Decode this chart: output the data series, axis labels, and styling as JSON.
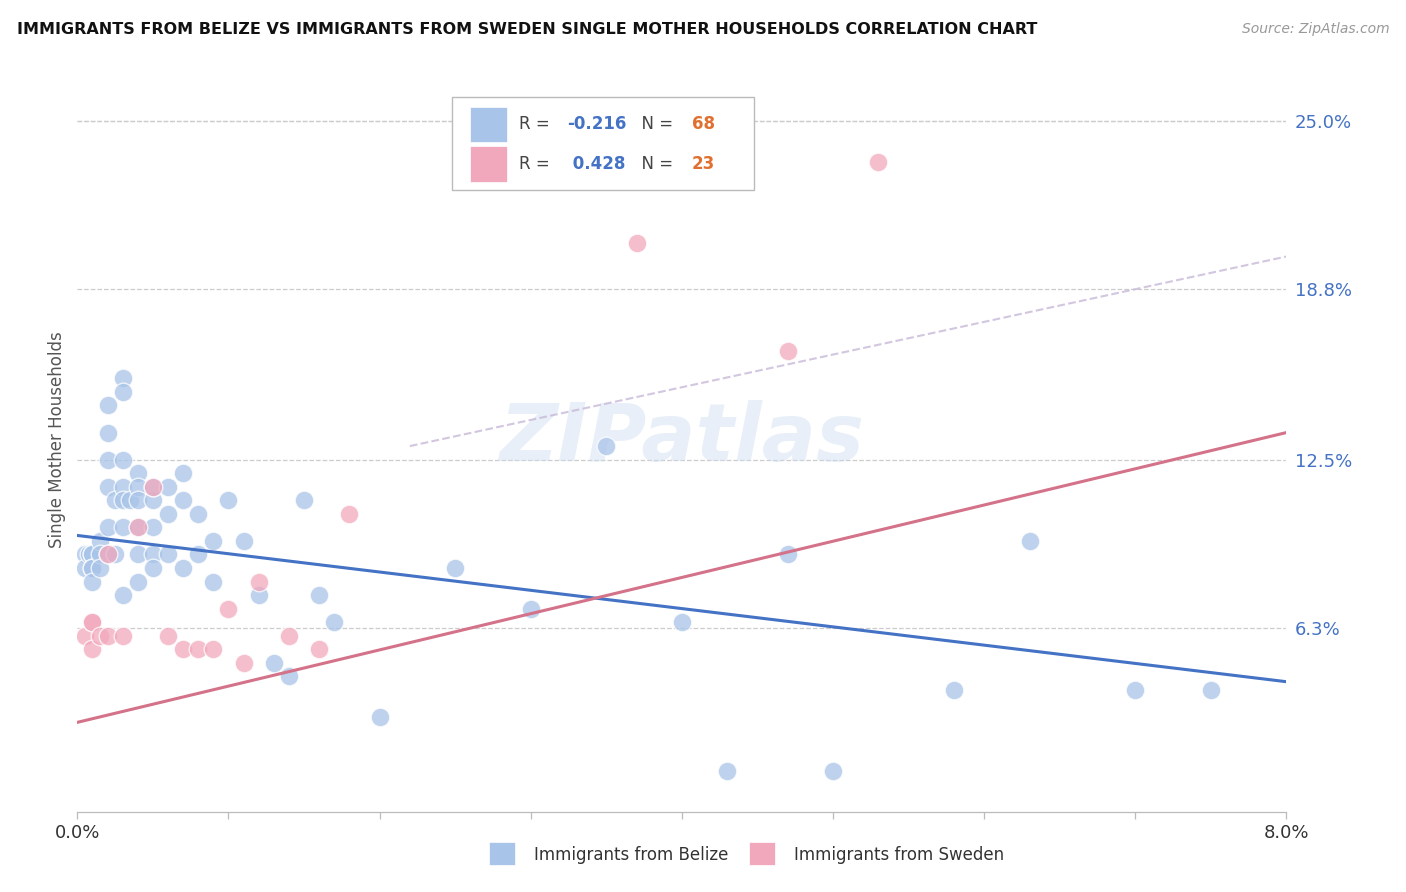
{
  "title": "IMMIGRANTS FROM BELIZE VS IMMIGRANTS FROM SWEDEN SINGLE MOTHER HOUSEHOLDS CORRELATION CHART",
  "source": "Source: ZipAtlas.com",
  "ylabel": "Single Mother Households",
  "right_yticks": [
    "25.0%",
    "18.8%",
    "12.5%",
    "6.3%"
  ],
  "right_ytick_vals": [
    0.25,
    0.188,
    0.125,
    0.063
  ],
  "belize_R": "-0.216",
  "belize_N": "68",
  "sweden_R": "0.428",
  "sweden_N": "23",
  "belize_color": "#a8c4e8",
  "sweden_color": "#f2a8bc",
  "belize_line_color": "#4472c4",
  "sweden_line_color": "#d4728a",
  "dashed_line_color": "#c8b8d8",
  "label_color": "#4472c4",
  "N_color": "#e07030",
  "watermark": "ZIPatlas",
  "xlim": [
    0.0,
    0.08
  ],
  "ylim": [
    -0.005,
    0.27
  ],
  "x_tick_positions": [
    0.0,
    0.01,
    0.02,
    0.03,
    0.04,
    0.05,
    0.06,
    0.07,
    0.08
  ],
  "x_tick_labels": [
    "0.0%",
    "",
    "",
    "",
    "",
    "",
    "",
    "",
    "8.0%"
  ],
  "belize_x": [
    0.0005,
    0.0005,
    0.0008,
    0.001,
    0.001,
    0.001,
    0.001,
    0.001,
    0.0015,
    0.0015,
    0.0015,
    0.002,
    0.002,
    0.002,
    0.002,
    0.002,
    0.002,
    0.0025,
    0.0025,
    0.003,
    0.003,
    0.003,
    0.003,
    0.003,
    0.003,
    0.003,
    0.0035,
    0.004,
    0.004,
    0.004,
    0.004,
    0.004,
    0.004,
    0.005,
    0.005,
    0.005,
    0.005,
    0.005,
    0.006,
    0.006,
    0.006,
    0.007,
    0.007,
    0.007,
    0.008,
    0.008,
    0.009,
    0.009,
    0.01,
    0.011,
    0.012,
    0.013,
    0.014,
    0.015,
    0.016,
    0.017,
    0.02,
    0.025,
    0.03,
    0.035,
    0.04,
    0.043,
    0.047,
    0.05,
    0.058,
    0.063,
    0.07,
    0.075
  ],
  "belize_y": [
    0.09,
    0.085,
    0.09,
    0.09,
    0.09,
    0.085,
    0.085,
    0.08,
    0.095,
    0.09,
    0.085,
    0.145,
    0.135,
    0.125,
    0.115,
    0.1,
    0.09,
    0.11,
    0.09,
    0.155,
    0.15,
    0.125,
    0.115,
    0.11,
    0.1,
    0.075,
    0.11,
    0.12,
    0.115,
    0.11,
    0.1,
    0.09,
    0.08,
    0.11,
    0.115,
    0.1,
    0.09,
    0.085,
    0.115,
    0.105,
    0.09,
    0.12,
    0.11,
    0.085,
    0.105,
    0.09,
    0.095,
    0.08,
    0.11,
    0.095,
    0.075,
    0.05,
    0.045,
    0.11,
    0.075,
    0.065,
    0.03,
    0.085,
    0.07,
    0.13,
    0.065,
    0.01,
    0.09,
    0.01,
    0.04,
    0.095,
    0.04,
    0.04
  ],
  "sweden_x": [
    0.0005,
    0.001,
    0.001,
    0.001,
    0.0015,
    0.002,
    0.002,
    0.003,
    0.004,
    0.005,
    0.006,
    0.007,
    0.008,
    0.009,
    0.01,
    0.011,
    0.012,
    0.014,
    0.016,
    0.018,
    0.037,
    0.047,
    0.053
  ],
  "sweden_y": [
    0.06,
    0.065,
    0.065,
    0.055,
    0.06,
    0.09,
    0.06,
    0.06,
    0.1,
    0.115,
    0.06,
    0.055,
    0.055,
    0.055,
    0.07,
    0.05,
    0.08,
    0.06,
    0.055,
    0.105,
    0.205,
    0.165,
    0.235
  ],
  "belize_trend_x": [
    0.0,
    0.08
  ],
  "belize_trend_y": [
    0.097,
    0.043
  ],
  "sweden_trend_x": [
    0.0,
    0.08
  ],
  "sweden_trend_y": [
    0.028,
    0.135
  ],
  "dashed_trend_x": [
    0.022,
    0.08
  ],
  "dashed_trend_y": [
    0.13,
    0.2
  ]
}
